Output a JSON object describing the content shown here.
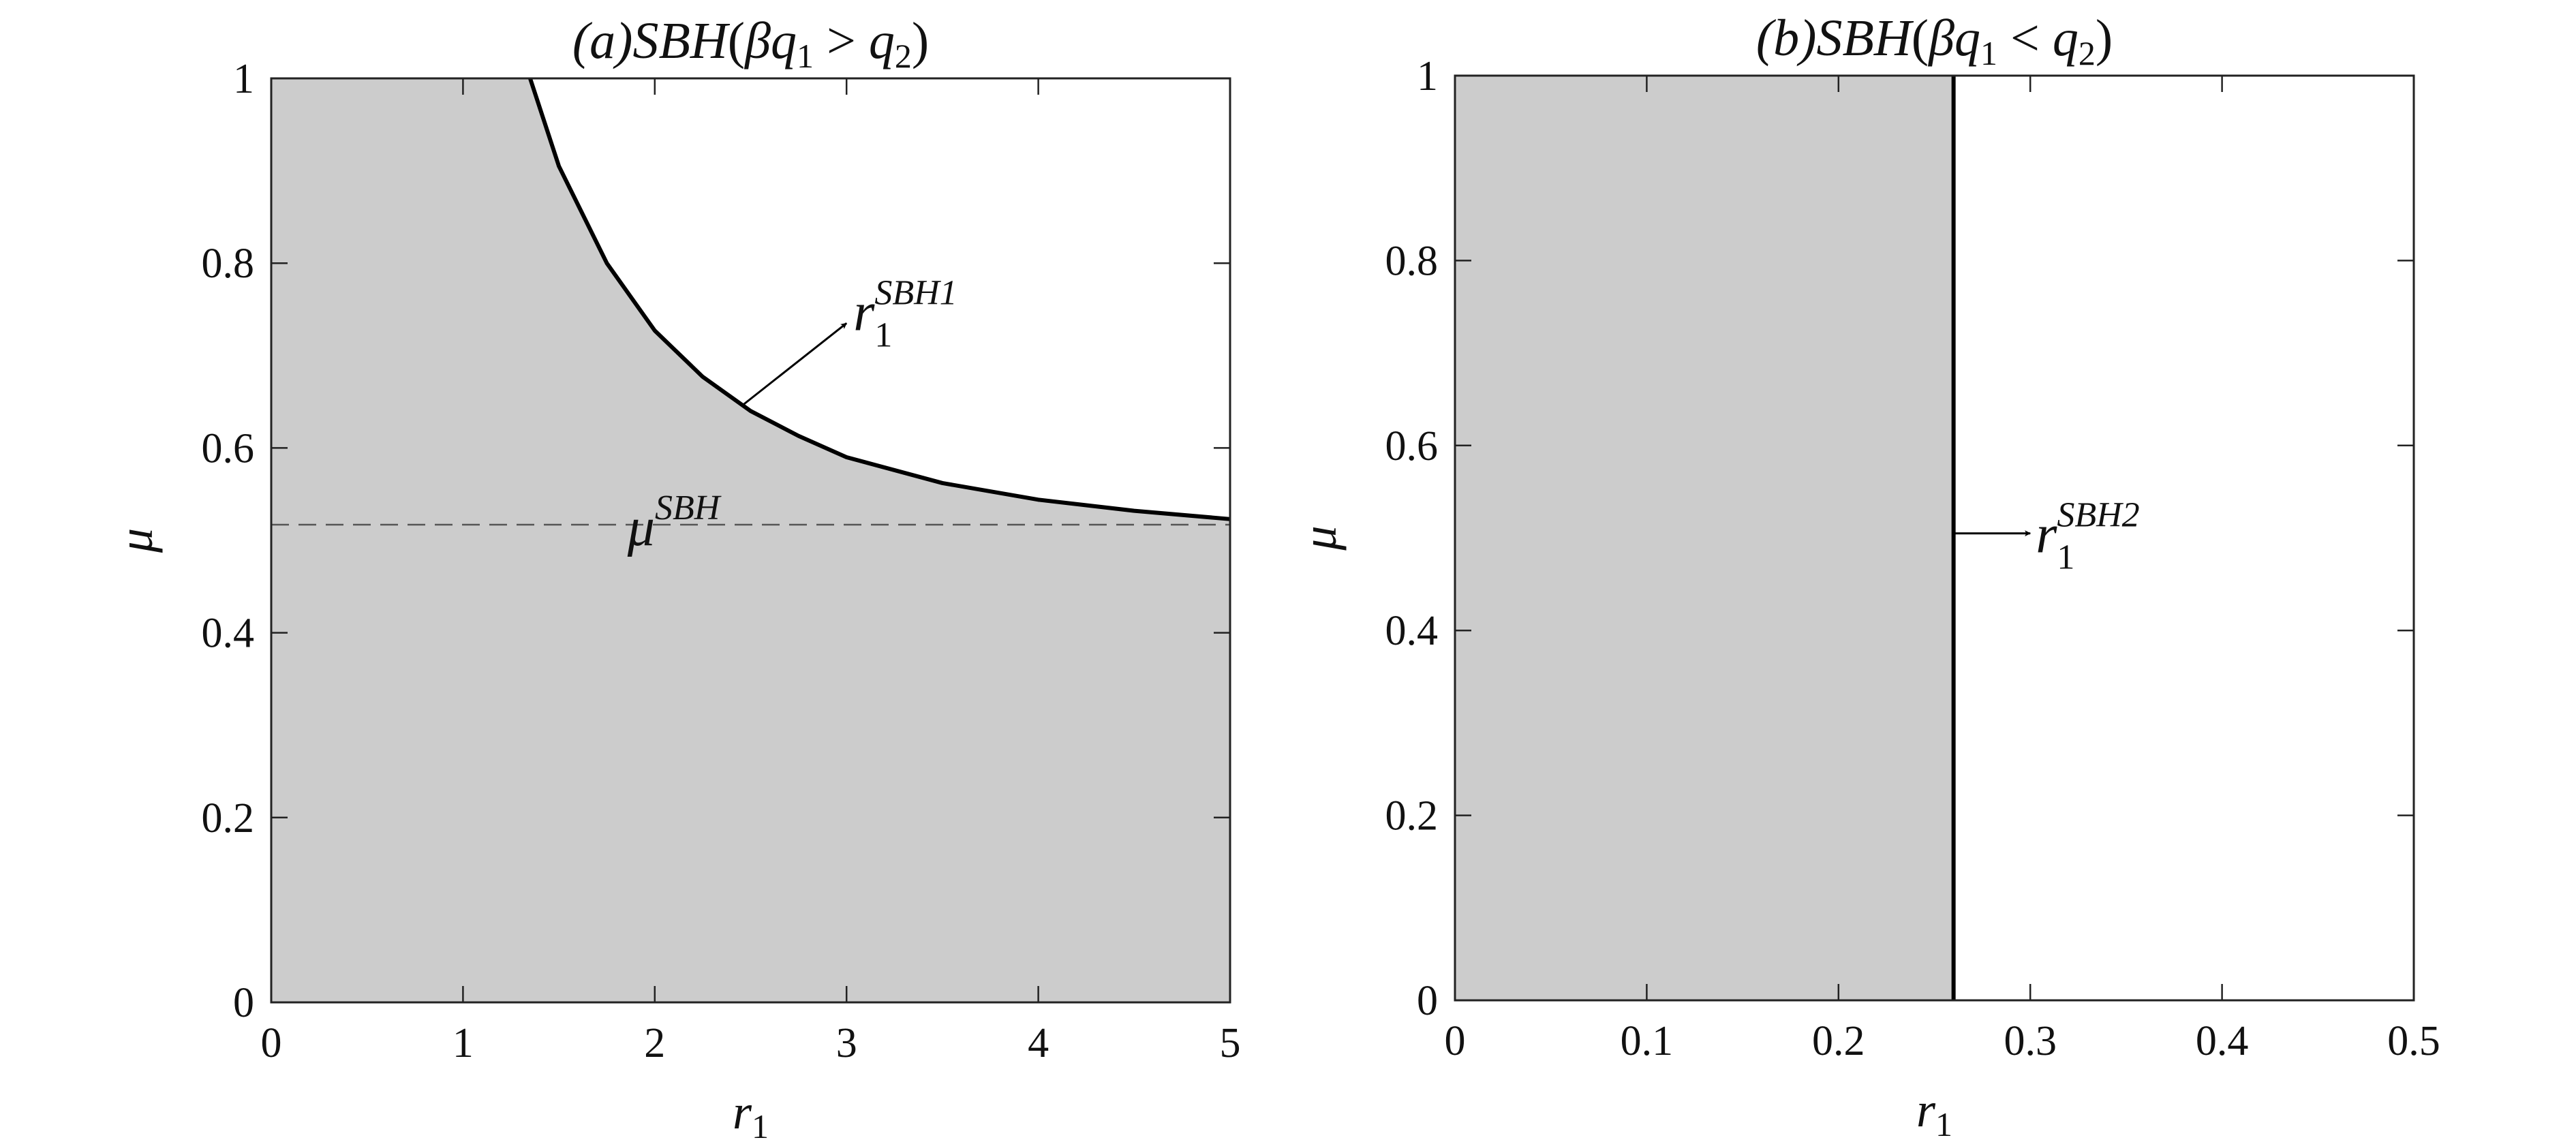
{
  "colors": {
    "fill": "#cccccc",
    "curve": "#000000",
    "dashed": "#555555",
    "axis": "#222222"
  },
  "chart_data": [
    {
      "type": "area",
      "title": "(a)SBH(βq₁ > q₂)",
      "title_parts": {
        "prefix": "(a)",
        "name": "SBH",
        "open": "(",
        "beta": "β",
        "q": "q",
        "q_sub": "1",
        "rel": " > ",
        "q2": "q",
        "q2_sub": "2",
        "close": ")"
      },
      "xlabel": "r",
      "xlabel_sub": "1",
      "ylabel": "μ",
      "xlim": [
        0,
        5
      ],
      "ylim": [
        0,
        1
      ],
      "xticks": [
        "0",
        "1",
        "2",
        "3",
        "4",
        "5"
      ],
      "yticks": [
        "0",
        "0.2",
        "0.4",
        "0.6",
        "0.8",
        "1"
      ],
      "grid": false,
      "boundary_curve": {
        "x": [
          1.35,
          1.5,
          1.75,
          2.0,
          2.25,
          2.5,
          2.75,
          3.0,
          3.5,
          4.0,
          4.5,
          5.0
        ],
        "y": [
          1.0,
          0.905,
          0.8,
          0.727,
          0.677,
          0.64,
          0.613,
          0.59,
          0.562,
          0.544,
          0.532,
          0.523
        ]
      },
      "shaded_region": "below boundary curve",
      "dashed_line": {
        "y": 0.517,
        "label": "μ",
        "label_sup": "SBH"
      },
      "annotation": {
        "label": "r",
        "sub": "1",
        "sup": "SBH1",
        "arrow_from": [
          2.45,
          0.645
        ],
        "arrow_to": [
          3.0,
          0.735
        ]
      }
    },
    {
      "type": "area",
      "title": "(b)SBH(βq₁ < q₂)",
      "title_parts": {
        "prefix": "(b)",
        "name": "SBH",
        "open": "(",
        "beta": "β",
        "q": "q",
        "q_sub": "1",
        "rel": " < ",
        "q2": "q",
        "q2_sub": "2",
        "close": ")"
      },
      "xlabel": "r",
      "xlabel_sub": "1",
      "ylabel": "μ",
      "xlim": [
        0,
        0.5
      ],
      "ylim": [
        0,
        1
      ],
      "xticks": [
        "0",
        "0.1",
        "0.2",
        "0.3",
        "0.4",
        "0.5"
      ],
      "yticks": [
        "0",
        "0.2",
        "0.4",
        "0.6",
        "0.8",
        "1"
      ],
      "grid": false,
      "boundary_vertical": {
        "x": 0.26
      },
      "shaded_region": "left of boundary line",
      "annotation": {
        "label": "r",
        "sub": "1",
        "sup": "SBH2",
        "arrow_from": [
          0.26,
          0.505
        ],
        "arrow_to": [
          0.3,
          0.505
        ]
      }
    }
  ]
}
